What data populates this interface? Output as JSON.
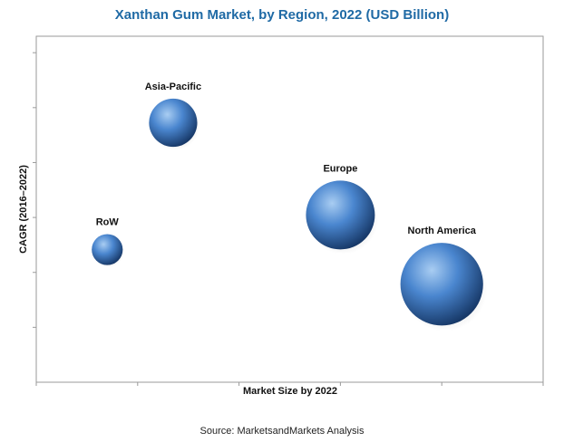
{
  "source": "Source: MarketsandMarkets Analysis",
  "colors": {
    "title": "#1f6aa5",
    "bubble_light": "#9fc6ee",
    "bubble_mid": "#3d78c2",
    "bubble_dark": "#173a6a"
  },
  "chart_data": {
    "type": "bubble",
    "title": "Xanthan Gum Market, by Region, 2022 (USD Billion)",
    "xlabel": "Market Size by 2022",
    "ylabel": "CAGR (2016–2022)",
    "xlim": [
      0,
      10
    ],
    "ylim": [
      0,
      6
    ],
    "grid": false,
    "legend": "none",
    "points": [
      {
        "name": "Asia-Pacific",
        "x": 2.7,
        "y": 4.5,
        "size": 0.7
      },
      {
        "name": "RoW",
        "x": 1.4,
        "y": 2.3,
        "size": 0.45
      },
      {
        "name": "Europe",
        "x": 6.0,
        "y": 2.9,
        "size": 1.0
      },
      {
        "name": "North America",
        "x": 8.0,
        "y": 1.7,
        "size": 1.2
      }
    ]
  }
}
